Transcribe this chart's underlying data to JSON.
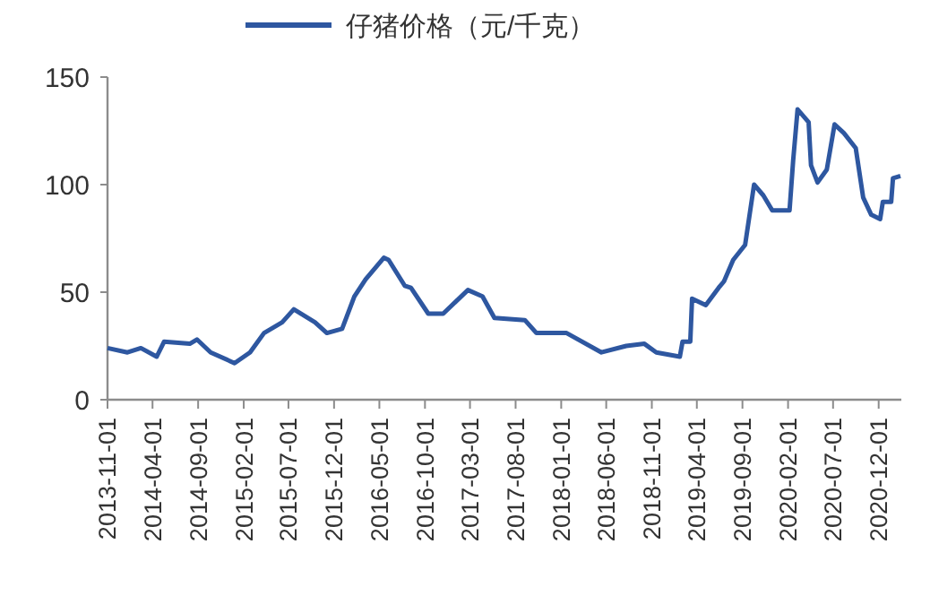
{
  "chart_data": {
    "type": "line",
    "legend": "top",
    "x": [
      "2013-11-01",
      "2014-01-07",
      "2014-02-21",
      "2014-04-15",
      "2014-05-10",
      "2014-08-04",
      "2014-08-28",
      "2014-10-13",
      "2015-01-01",
      "2015-02-22",
      "2015-04-10",
      "2015-06-10",
      "2015-07-19",
      "2015-09-28",
      "2015-11-07",
      "2015-12-28",
      "2016-02-07",
      "2016-03-16",
      "2016-05-16",
      "2016-06-01",
      "2016-07-25",
      "2016-08-15",
      "2016-10-12",
      "2016-12-01",
      "2017-02-22",
      "2017-04-12",
      "2017-05-22",
      "2017-09-01",
      "2017-10-10",
      "2018-01-19",
      "2018-05-16",
      "2018-08-07",
      "2018-10-07",
      "2018-11-16",
      "2019-02-03",
      "2019-02-12",
      "2019-03-10",
      "2019-03-16",
      "2019-05-01",
      "2019-06-13",
      "2019-07-01",
      "2019-08-01",
      "2019-09-10",
      "2019-10-10",
      "2019-11-10",
      "2019-12-10",
      "2020-02-06",
      "2020-02-18",
      "2020-03-04",
      "2020-04-10",
      "2020-04-18",
      "2020-05-10",
      "2020-06-10",
      "2020-07-06",
      "2020-08-06",
      "2020-09-15",
      "2020-10-10",
      "2020-11-06",
      "2020-12-06",
      "2020-12-15",
      "2021-01-12",
      "2021-01-18",
      "2021-02-12"
    ],
    "series": [
      {
        "name": "仔猪价格（元/千克）",
        "color": "#2e57a0",
        "values": [
          24,
          22,
          24,
          20,
          27,
          26,
          28,
          22,
          17,
          22,
          31,
          36,
          42,
          36,
          31,
          33,
          48,
          56,
          66,
          65,
          53,
          52,
          40,
          40,
          51,
          48,
          38,
          37,
          31,
          31,
          22,
          25,
          26,
          22,
          20,
          27,
          27,
          47,
          44,
          52,
          55,
          65,
          72,
          100,
          95,
          88,
          88,
          111,
          135,
          129,
          109,
          101,
          107,
          128,
          124,
          117,
          94,
          86,
          84,
          92,
          92,
          103,
          104
        ]
      }
    ],
    "xlim": [
      "2013-11-01",
      "2021-02-15"
    ],
    "xticks": [
      {
        "value": "2013-11-01",
        "label": "2013-11-01"
      },
      {
        "value": "2014-04-01",
        "label": "2014-04-01"
      },
      {
        "value": "2014-09-01",
        "label": "2014-09-01"
      },
      {
        "value": "2015-02-01",
        "label": "2015-02-01"
      },
      {
        "value": "2015-07-01",
        "label": "2015-07-01"
      },
      {
        "value": "2015-12-01",
        "label": "2015-12-01"
      },
      {
        "value": "2016-05-01",
        "label": "2016-05-01"
      },
      {
        "value": "2016-10-01",
        "label": "2016-10-01"
      },
      {
        "value": "2017-03-01",
        "label": "2017-03-01"
      },
      {
        "value": "2017-08-01",
        "label": "2017-08-01"
      },
      {
        "value": "2018-01-01",
        "label": "2018-01-01"
      },
      {
        "value": "2018-06-01",
        "label": "2018-06-01"
      },
      {
        "value": "2018-11-01",
        "label": "2018-11-01"
      },
      {
        "value": "2019-04-01",
        "label": "2019-04-01"
      },
      {
        "value": "2019-09-01",
        "label": "2019-09-01"
      },
      {
        "value": "2020-02-01",
        "label": "2020-02-01"
      },
      {
        "value": "2020-07-01",
        "label": "2020-07-01"
      },
      {
        "value": "2020-12-01",
        "label": "2020-12-01"
      }
    ],
    "ylim": [
      0,
      150
    ],
    "yticks": [
      0,
      50,
      100,
      150
    ]
  }
}
